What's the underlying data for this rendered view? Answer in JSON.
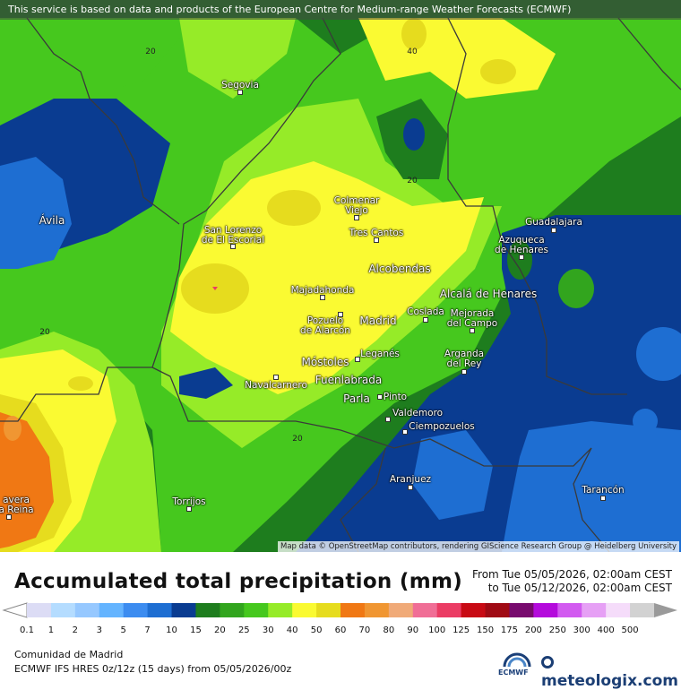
{
  "attribution_top": "This service is based on data and products of the European Centre for Medium-range Weather Forecasts (ECMWF)",
  "attribution_bottom": "Map data © OpenStreetMap contributors, rendering GIScience Research Group @ Heidelberg University",
  "title": "Accumulated total precipitation (mm)",
  "period": {
    "from": "From Tue 05/05/2026, 02:00am CEST",
    "to": "to Tue 05/12/2026, 02:00am CEST"
  },
  "region": "Comunidad de Madrid",
  "model": "ECMWF IFS HRES 0z/12z (15 days)  from  05/05/2026/00z",
  "brand": "meteologix.com",
  "ecmwf_label": "ECMWF",
  "legend": {
    "ticks": [
      "0.1",
      "1",
      "2",
      "3",
      "5",
      "7",
      "10",
      "15",
      "20",
      "25",
      "30",
      "40",
      "50",
      "60",
      "70",
      "80",
      "90",
      "100",
      "125",
      "150",
      "175",
      "200",
      "250",
      "300",
      "400",
      "500"
    ],
    "colors": [
      "#dcdcf5",
      "#b4dcff",
      "#96c8ff",
      "#64b4ff",
      "#3c8cf0",
      "#1e6ed2",
      "#0a3c91",
      "#1e7d1e",
      "#32a51e",
      "#46c81e",
      "#96eb28",
      "#fafa32",
      "#e6dc1e",
      "#f07814",
      "#f09632",
      "#f0aa78",
      "#f06e96",
      "#eb3c64",
      "#c80a14",
      "#a00a14",
      "#780a6e",
      "#b40adc",
      "#d25af0",
      "#e6a0f5",
      "#f5dcfa",
      "#d2d2d2"
    ]
  },
  "cities": {
    "segovia": "Segovia",
    "avila": "Ávila",
    "colmenar": "Colmenar\nViejo",
    "tres_cantos": "Tres Cantos",
    "san_lorenzo": "San Lorenzo\nde El Escorial",
    "guadalajara": "Guadalajara",
    "azuqueca": "Azuqueca\nde Henares",
    "alcobendas": "Alcobendas",
    "majadahonda": "Majadahonda",
    "alcala": "Alcalá de Henares",
    "pozuelo": "Pozuelo\nde Alarcón",
    "madrid": "Madrid",
    "coslada": "Coslada",
    "mejorada": "Mejorada\ndel Campo",
    "mostoles": "Móstoles",
    "leganes": "Leganés",
    "arganda": "Arganda\ndel Rey",
    "navalcarnero": "Navalcarnero",
    "fuenlabrada": "Fuenlabrada",
    "parla": "Parla",
    "pinto": "Pinto",
    "valdemoro": "Valdemoro",
    "ciempozuelos": "Ciempozuelos",
    "aranjuez": "Aranjuez",
    "tarancon": "Tarancón",
    "torrijos": "Torrijos",
    "talavera": "avera\na Reina"
  },
  "contour_labels": {
    "c1": "20",
    "c2": "40",
    "c3": "20",
    "c4": "20",
    "c5": "20"
  }
}
